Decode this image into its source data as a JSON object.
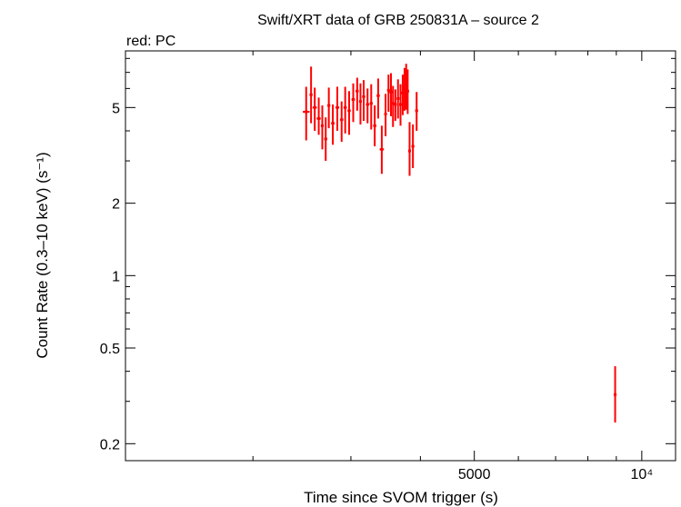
{
  "chart_data": {
    "type": "scatter",
    "title": "Swift/XRT data of GRB 250831A – source 2",
    "subtitle": "red: PC",
    "xlabel": "Time since SVOM trigger (s)",
    "ylabel": "Count Rate (0.3–10 keV) (s⁻¹)",
    "xscale": "log",
    "yscale": "log",
    "xlim": [
      1180,
      11500
    ],
    "ylim": [
      0.17,
      8.6
    ],
    "x_ticks": [
      {
        "value": 5000,
        "label": "5000"
      },
      {
        "value": 10000,
        "label": "10⁴"
      }
    ],
    "y_ticks": [
      {
        "value": 0.2,
        "label": "0.2"
      },
      {
        "value": 0.5,
        "label": "0.5"
      },
      {
        "value": 1,
        "label": "1"
      },
      {
        "value": 2,
        "label": "2"
      },
      {
        "value": 5,
        "label": "5"
      }
    ],
    "grid": false,
    "legend": "none",
    "series": [
      {
        "name": "PC",
        "color": "#ff0000",
        "points": [
          {
            "x": 2493,
            "xerr": [
              35,
              35
            ],
            "y": 4.8,
            "yerr": [
              3.65,
              6.1
            ]
          },
          {
            "x": 2544,
            "xerr": [
              16,
              16
            ],
            "y": 5.65,
            "yerr": [
              4.3,
              7.4
            ]
          },
          {
            "x": 2583,
            "xerr": [
              22,
              22
            ],
            "y": 5.0,
            "yerr": [
              4.0,
              6.05
            ]
          },
          {
            "x": 2626,
            "xerr": [
              22,
              22
            ],
            "y": 4.5,
            "yerr": [
              3.85,
              5.5
            ]
          },
          {
            "x": 2665,
            "xerr": [
              16,
              16
            ],
            "y": 4.2,
            "yerr": [
              3.35,
              5.1
            ]
          },
          {
            "x": 2703,
            "xerr": [
              16,
              16
            ],
            "y": 3.7,
            "yerr": [
              3.0,
              4.55
            ]
          },
          {
            "x": 2738,
            "xerr": [
              16,
              16
            ],
            "y": 5.1,
            "yerr": [
              4.1,
              6.05
            ]
          },
          {
            "x": 2784,
            "xerr": [
              20,
              20
            ],
            "y": 4.3,
            "yerr": [
              3.5,
              5.15
            ]
          },
          {
            "x": 2836,
            "xerr": [
              22,
              22
            ],
            "y": 5.0,
            "yerr": [
              4.0,
              6.1
            ]
          },
          {
            "x": 2887,
            "xerr": [
              20,
              20
            ],
            "y": 4.45,
            "yerr": [
              3.6,
              5.3
            ]
          },
          {
            "x": 2930,
            "xerr": [
              20,
              20
            ],
            "y": 5.0,
            "yerr": [
              3.9,
              6.1
            ]
          },
          {
            "x": 2978,
            "xerr": [
              20,
              20
            ],
            "y": 4.85,
            "yerr": [
              3.85,
              5.85
            ]
          },
          {
            "x": 3029,
            "xerr": [
              22,
              22
            ],
            "y": 5.4,
            "yerr": [
              4.35,
              6.3
            ]
          },
          {
            "x": 3079,
            "xerr": [
              20,
              20
            ],
            "y": 5.85,
            "yerr": [
              4.85,
              6.65
            ]
          },
          {
            "x": 3121,
            "xerr": [
              18,
              18
            ],
            "y": 5.3,
            "yerr": [
              4.25,
              6.3
            ]
          },
          {
            "x": 3163,
            "xerr": [
              20,
              20
            ],
            "y": 5.55,
            "yerr": [
              4.4,
              6.5
            ]
          },
          {
            "x": 3214,
            "xerr": [
              22,
              22
            ],
            "y": 5.15,
            "yerr": [
              4.3,
              6.0
            ]
          },
          {
            "x": 3263,
            "xerr": [
              20,
              20
            ],
            "y": 5.2,
            "yerr": [
              4.05,
              6.25
            ]
          },
          {
            "x": 3311,
            "xerr": [
              22,
              22
            ],
            "y": 4.2,
            "yerr": [
              3.45,
              5.1
            ]
          },
          {
            "x": 3359,
            "xerr": [
              22,
              22
            ],
            "y": 5.6,
            "yerr": [
              4.5,
              6.6
            ]
          },
          {
            "x": 3409,
            "xerr": [
              30,
              30
            ],
            "y": 3.35,
            "yerr": [
              2.65,
              4.2
            ]
          },
          {
            "x": 3463,
            "xerr": [
              18,
              18
            ],
            "y": 4.7,
            "yerr": [
              3.8,
              5.7
            ]
          },
          {
            "x": 3505,
            "xerr": [
              18,
              18
            ],
            "y": 5.9,
            "yerr": [
              4.8,
              6.85
            ]
          },
          {
            "x": 3541,
            "xerr": [
              14,
              14
            ],
            "y": 5.8,
            "yerr": [
              4.6,
              6.95
            ]
          },
          {
            "x": 3571,
            "xerr": [
              14,
              14
            ],
            "y": 5.2,
            "yerr": [
              4.15,
              6.15
            ]
          },
          {
            "x": 3606,
            "xerr": [
              16,
              16
            ],
            "y": 5.15,
            "yerr": [
              4.4,
              5.95
            ]
          },
          {
            "x": 3646,
            "xerr": [
              18,
              18
            ],
            "y": 5.45,
            "yerr": [
              4.5,
              6.55
            ]
          },
          {
            "x": 3684,
            "xerr": [
              14,
              14
            ],
            "y": 5.15,
            "yerr": [
              4.2,
              6.25
            ]
          },
          {
            "x": 3718,
            "xerr": [
              12,
              12
            ],
            "y": 5.75,
            "yerr": [
              4.65,
              6.85
            ]
          },
          {
            "x": 3746,
            "xerr": [
              12,
              12
            ],
            "y": 6.0,
            "yerr": [
              4.85,
              7.3
            ]
          },
          {
            "x": 3771,
            "xerr": [
              10,
              10
            ],
            "y": 5.6,
            "yerr": [
              4.9,
              7.6
            ]
          },
          {
            "x": 3795,
            "xerr": [
              10,
              10
            ],
            "y": 5.85,
            "yerr": [
              4.7,
              7.2
            ]
          },
          {
            "x": 3825,
            "xerr": [
              16,
              16
            ],
            "y": 3.3,
            "yerr": [
              2.6,
              4.35
            ]
          },
          {
            "x": 3878,
            "xerr": [
              22,
              22
            ],
            "y": 3.45,
            "yerr": [
              2.8,
              4.25
            ]
          },
          {
            "x": 3938,
            "xerr": [
              22,
              22
            ],
            "y": 4.85,
            "yerr": [
              4.0,
              5.8
            ]
          },
          {
            "x": 8956,
            "xerr": [
              12,
              12
            ],
            "y": 0.32,
            "yerr": [
              0.245,
              0.42
            ]
          }
        ]
      }
    ]
  }
}
